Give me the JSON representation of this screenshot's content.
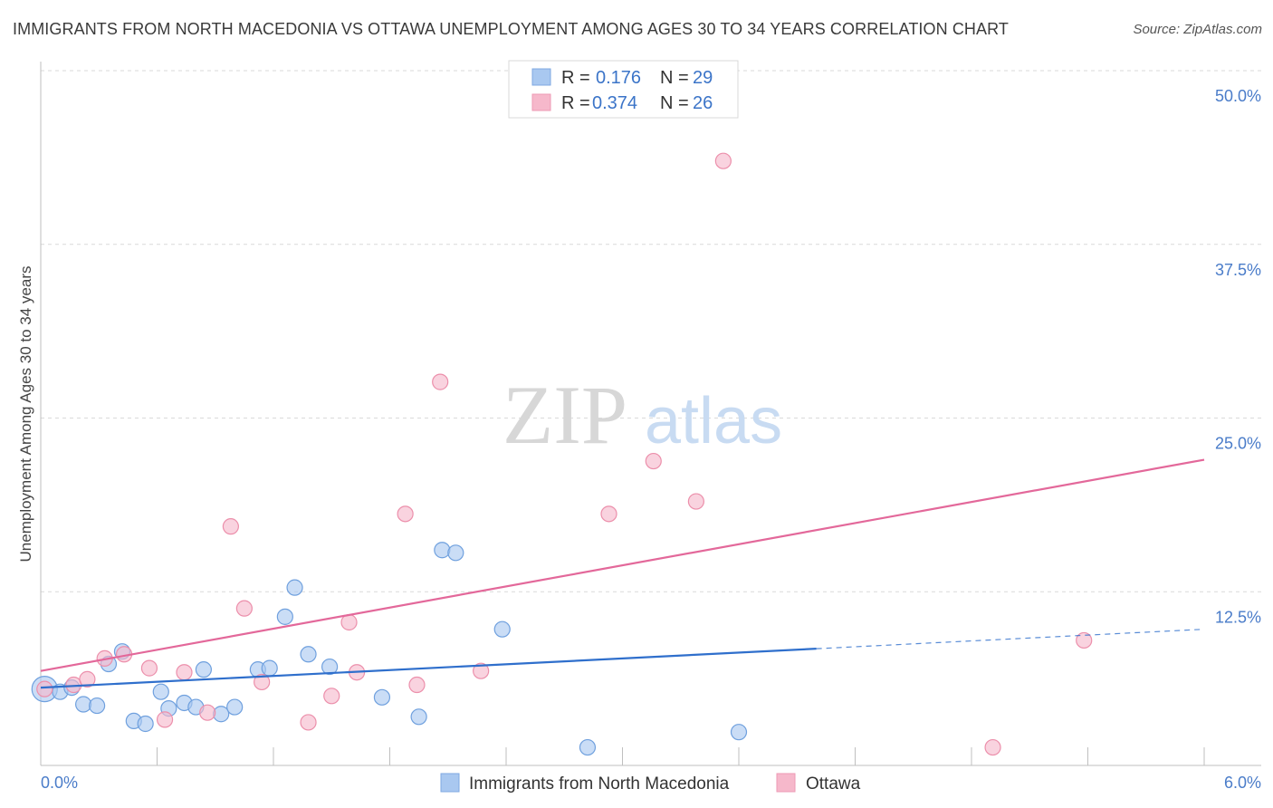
{
  "title": "IMMIGRANTS FROM NORTH MACEDONIA VS OTTAWA UNEMPLOYMENT AMONG AGES 30 TO 34 YEARS CORRELATION CHART",
  "source": "Source: ZipAtlas.com",
  "watermark": {
    "zip": "ZIP",
    "atlas": "atlas"
  },
  "legend_top": {
    "rows": [
      {
        "r_label": "R =",
        "r_value": "0.176",
        "n_label": "N =",
        "n_value": "29",
        "color": "#a9c8f0"
      },
      {
        "r_label": "R =",
        "r_value": "0.374",
        "n_label": "N =",
        "n_value": "26",
        "color": "#f6b8cb"
      }
    ]
  },
  "chart_data": {
    "type": "scatter",
    "title": "IMMIGRANTS FROM NORTH MACEDONIA VS OTTAWA UNEMPLOYMENT AMONG AGES 30 TO 34 YEARS CORRELATION CHART",
    "xlabel": "",
    "ylabel": "Unemployment Among Ages 30 to 34 years",
    "xlim": [
      0,
      6
    ],
    "ylim": [
      0,
      50
    ],
    "x_tick_labels": [
      "0.0%",
      "6.0%"
    ],
    "y_ticks": [
      12.5,
      25.0,
      37.5,
      50.0
    ],
    "y_tick_labels": [
      "12.5%",
      "25.0%",
      "37.5%",
      "50.0%"
    ],
    "grid": true,
    "series": [
      {
        "name": "Immigrants from North Macedonia",
        "color": "#a9c8f0",
        "stroke": "#6fa0de",
        "line_color": "#2f6fcc",
        "trend": {
          "x0": 0.0,
          "y0": 5.6,
          "x1": 4.0,
          "y1": 8.4,
          "dash_x1": 6.0,
          "dash_y1": 9.8
        },
        "points": [
          [
            0.02,
            5.5
          ],
          [
            0.1,
            5.3
          ],
          [
            0.16,
            5.6
          ],
          [
            0.22,
            4.4
          ],
          [
            0.29,
            4.3
          ],
          [
            0.35,
            7.3
          ],
          [
            0.42,
            8.2
          ],
          [
            0.48,
            3.2
          ],
          [
            0.54,
            3.0
          ],
          [
            0.62,
            5.3
          ],
          [
            0.66,
            4.1
          ],
          [
            0.74,
            4.5
          ],
          [
            0.8,
            4.2
          ],
          [
            0.84,
            6.9
          ],
          [
            0.93,
            3.7
          ],
          [
            1.0,
            4.2
          ],
          [
            1.12,
            6.9
          ],
          [
            1.18,
            7.0
          ],
          [
            1.26,
            10.7
          ],
          [
            1.31,
            12.8
          ],
          [
            1.38,
            8.0
          ],
          [
            1.49,
            7.1
          ],
          [
            1.76,
            4.9
          ],
          [
            1.95,
            3.5
          ],
          [
            2.07,
            15.5
          ],
          [
            2.14,
            15.3
          ],
          [
            2.38,
            9.8
          ],
          [
            2.82,
            1.3
          ],
          [
            3.6,
            2.4
          ]
        ]
      },
      {
        "name": "Ottawa",
        "color": "#f6b8cb",
        "stroke": "#ec8fab",
        "line_color": "#e3689a",
        "trend": {
          "x0": 0.0,
          "y0": 6.8,
          "x1": 6.0,
          "y1": 22.0
        },
        "points": [
          [
            0.02,
            5.5
          ],
          [
            0.17,
            5.8
          ],
          [
            0.24,
            6.2
          ],
          [
            0.33,
            7.7
          ],
          [
            0.43,
            8.0
          ],
          [
            0.56,
            7.0
          ],
          [
            0.64,
            3.3
          ],
          [
            0.74,
            6.7
          ],
          [
            0.86,
            3.8
          ],
          [
            0.98,
            17.2
          ],
          [
            1.05,
            11.3
          ],
          [
            1.14,
            6.0
          ],
          [
            1.38,
            3.1
          ],
          [
            1.5,
            5.0
          ],
          [
            1.59,
            10.3
          ],
          [
            1.63,
            6.7
          ],
          [
            1.88,
            18.1
          ],
          [
            1.94,
            5.8
          ],
          [
            2.06,
            27.6
          ],
          [
            2.27,
            6.8
          ],
          [
            2.93,
            18.1
          ],
          [
            3.16,
            21.9
          ],
          [
            3.38,
            19.0
          ],
          [
            3.52,
            43.5
          ],
          [
            4.91,
            1.3
          ],
          [
            5.38,
            9.0
          ]
        ]
      }
    ]
  },
  "legend_bottom": {
    "items": [
      {
        "label": "Immigrants from North Macedonia",
        "color": "#a9c8f0"
      },
      {
        "label": "Ottawa",
        "color": "#f6b8cb"
      }
    ]
  }
}
